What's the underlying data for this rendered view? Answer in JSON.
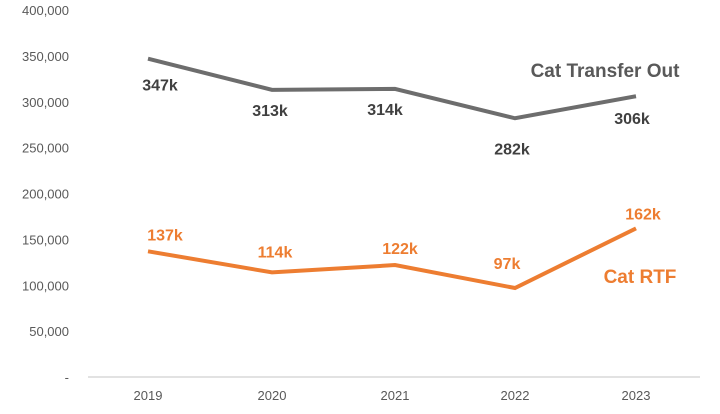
{
  "chart_data": {
    "type": "line",
    "title": "",
    "xlabel": "",
    "ylabel": "",
    "categories": [
      "2019",
      "2020",
      "2021",
      "2022",
      "2023"
    ],
    "ylim": [
      0,
      400000
    ],
    "yticks": [
      0,
      50000,
      100000,
      150000,
      200000,
      250000,
      300000,
      350000,
      400000
    ],
    "ytick_labels": [
      "-",
      "50,000",
      "100,000",
      "150,000",
      "200,000",
      "250,000",
      "300,000",
      "350,000",
      "400,000"
    ],
    "grid": false,
    "legend": "inline series labels",
    "series": [
      {
        "name": "Cat Transfer Out",
        "color": "#6d6d6d",
        "values": [
          347000,
          313000,
          314000,
          282000,
          306000
        ],
        "data_labels": [
          "347k",
          "313k",
          "314k",
          "282k",
          "306k"
        ]
      },
      {
        "name": "Cat RTF",
        "color": "#ed7d31",
        "values": [
          137000,
          114000,
          122000,
          97000,
          162000
        ],
        "data_labels": [
          "137k",
          "114k",
          "122k",
          "97k",
          "162k"
        ]
      }
    ]
  }
}
